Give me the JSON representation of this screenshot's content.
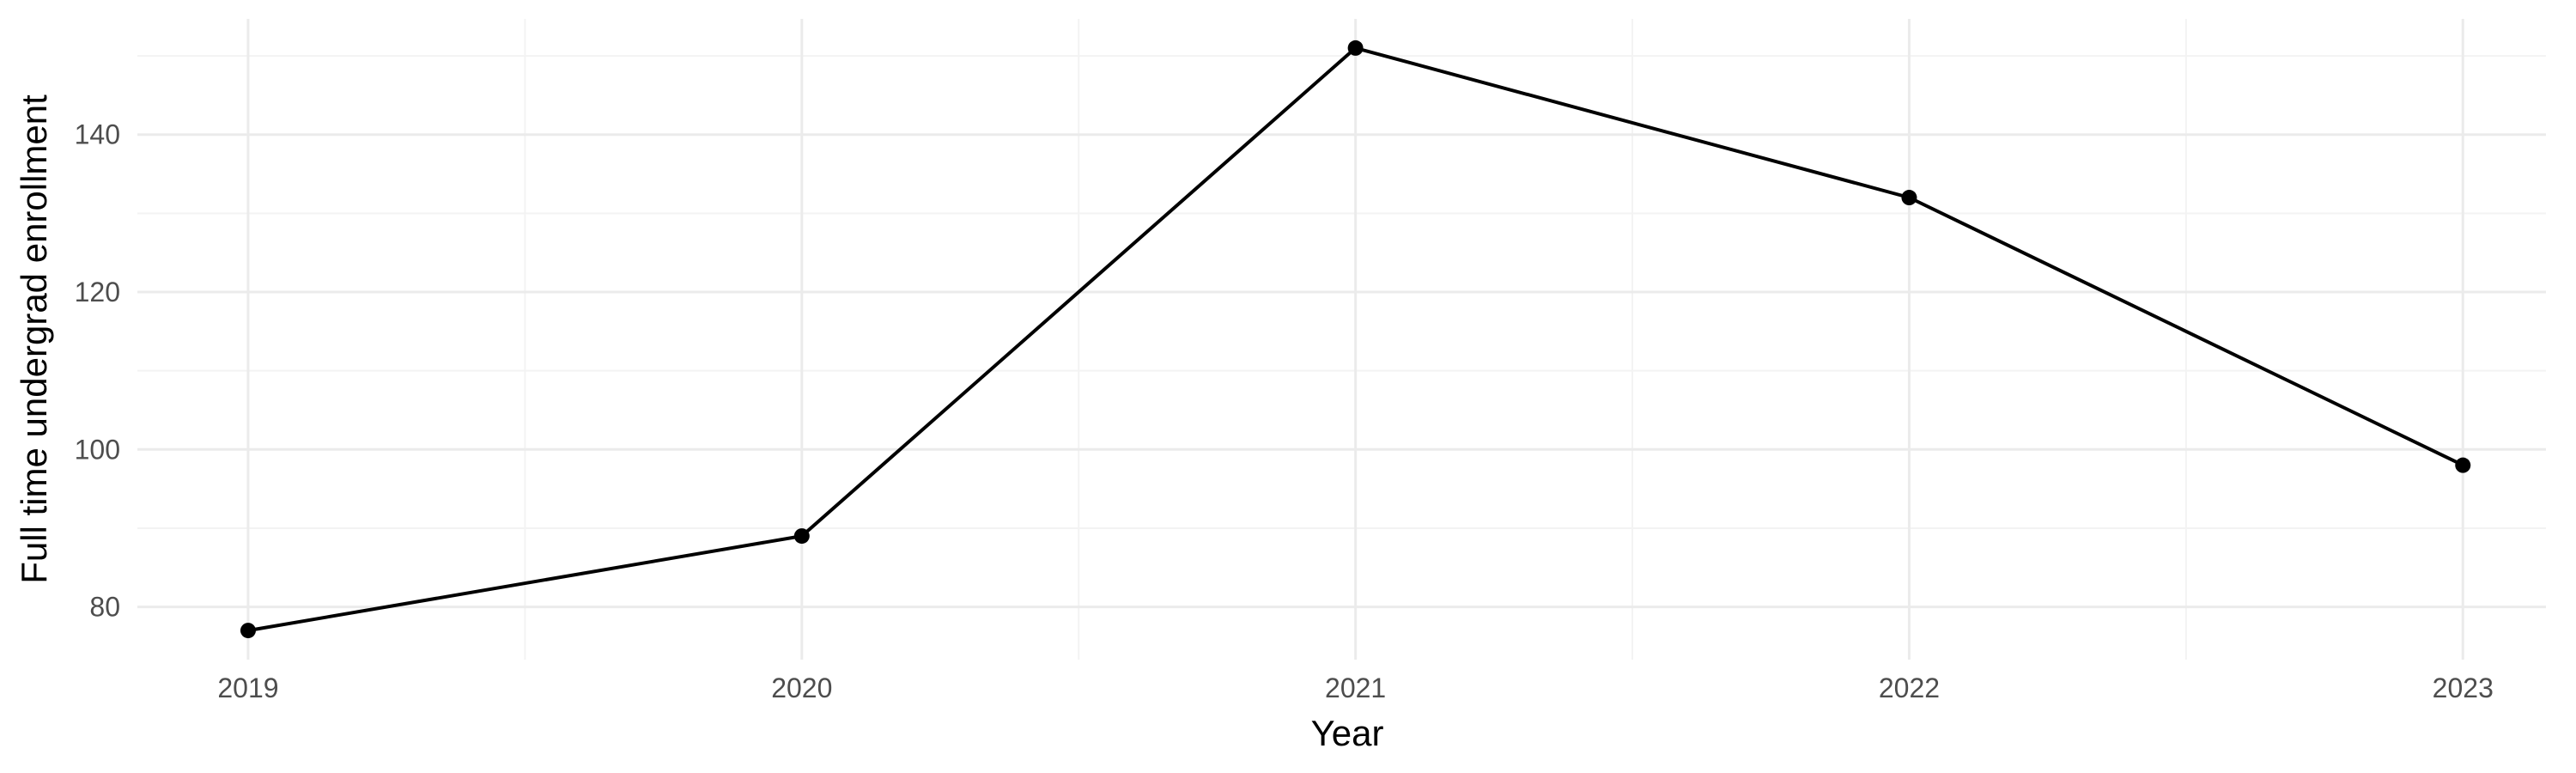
{
  "chart_data": {
    "type": "line",
    "title": "",
    "xlabel": "Year",
    "ylabel": "Full time undergrad enrollment",
    "x": [
      2019,
      2020,
      2021,
      2022,
      2023
    ],
    "series": [
      {
        "values": [
          77,
          89,
          151,
          132,
          98
        ],
        "color": "#000000"
      }
    ],
    "xlim": [
      2018.8,
      2023.15
    ],
    "ylim": [
      73.3,
      154.7
    ],
    "x_major_ticks": [
      2019,
      2020,
      2021,
      2022,
      2023
    ],
    "x_tick_labels": [
      "2019",
      "2020",
      "2021",
      "2022",
      "2023"
    ],
    "y_major_ticks": [
      80,
      100,
      120,
      140
    ],
    "y_tick_labels": [
      "80",
      "100",
      "120",
      "140"
    ],
    "grid": true,
    "legend": "none"
  }
}
